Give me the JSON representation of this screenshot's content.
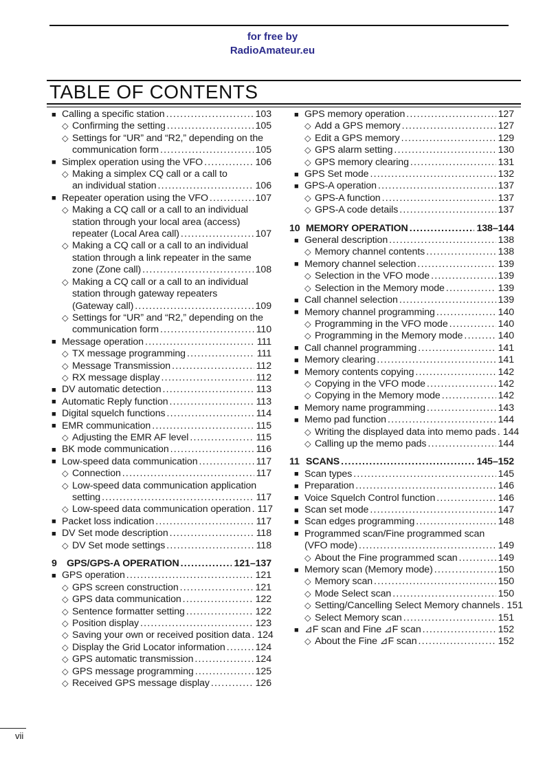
{
  "header": {
    "credit_line1": "for free by",
    "credit_line2": "RadioAmateur.eu",
    "link_color": "#2b2b8c"
  },
  "toc": {
    "title": "TABLE OF CONTENTS",
    "bullet_level1": "■",
    "bullet_level2": "◇",
    "columns": {
      "left": [
        {
          "type": "l1",
          "lines": [
            "Calling a specific station"
          ],
          "page": "103"
        },
        {
          "type": "l2",
          "lines": [
            "Confirming the setting"
          ],
          "page": "105"
        },
        {
          "type": "l2",
          "lines": [
            "Settings for “UR” and “R2,” depending on the",
            "communication form"
          ],
          "page": "105"
        },
        {
          "type": "l1",
          "lines": [
            "Simplex operation using the VFO"
          ],
          "page": "106"
        },
        {
          "type": "l2",
          "lines": [
            "Making a simplex CQ call or a call to",
            "an individual station"
          ],
          "page": "106"
        },
        {
          "type": "l1",
          "lines": [
            "Repeater operation using the VFO"
          ],
          "page": "107"
        },
        {
          "type": "l2",
          "lines": [
            "Making a CQ call or a call to an individual",
            "station through your local area (access)",
            "repeater (Local Area call)"
          ],
          "page": "107"
        },
        {
          "type": "l2",
          "lines": [
            "Making a CQ call or a call to an individual",
            "station through a link repeater in the same",
            "zone (Zone call)"
          ],
          "page": "108"
        },
        {
          "type": "l2",
          "lines": [
            "Making a CQ call or a call to an individual",
            "station through gateway repeaters",
            "(Gateway call)"
          ],
          "page": "109"
        },
        {
          "type": "l2",
          "lines": [
            "Settings for “UR” and “R2,” depending on the",
            "communication form"
          ],
          "page": "110"
        },
        {
          "type": "l1",
          "lines": [
            "Message operation"
          ],
          "page": "111"
        },
        {
          "type": "l2",
          "lines": [
            "TX message programming"
          ],
          "page": "111"
        },
        {
          "type": "l2",
          "lines": [
            "Message Transmission"
          ],
          "page": "112"
        },
        {
          "type": "l2",
          "lines": [
            "RX message display"
          ],
          "page": "112"
        },
        {
          "type": "l1",
          "lines": [
            "DV automatic detection"
          ],
          "page": "113"
        },
        {
          "type": "l1",
          "lines": [
            "Automatic Reply function"
          ],
          "page": "113"
        },
        {
          "type": "l1",
          "lines": [
            "Digital squelch functions"
          ],
          "page": "114"
        },
        {
          "type": "l1",
          "lines": [
            "EMR communication"
          ],
          "page": "115"
        },
        {
          "type": "l2",
          "lines": [
            "Adjusting the EMR AF level"
          ],
          "page": "115"
        },
        {
          "type": "l1",
          "lines": [
            "BK mode communication"
          ],
          "page": "116"
        },
        {
          "type": "l1",
          "lines": [
            "Low-speed data communication"
          ],
          "page": "117"
        },
        {
          "type": "l2",
          "lines": [
            "Connection"
          ],
          "page": "117"
        },
        {
          "type": "l2",
          "lines": [
            "Low-speed data communication application",
            "setting"
          ],
          "page": "117"
        },
        {
          "type": "l2",
          "lines": [
            "Low-speed data communication operation"
          ],
          "page": "117"
        },
        {
          "type": "l1",
          "lines": [
            "Packet loss indication"
          ],
          "page": "117"
        },
        {
          "type": "l1",
          "lines": [
            "DV Set mode description"
          ],
          "page": "118"
        },
        {
          "type": "l2",
          "lines": [
            "DV Set mode settings"
          ],
          "page": "118"
        },
        {
          "type": "chapter",
          "num": "9",
          "lines": [
            "GPS/GPS-A OPERATION"
          ],
          "page": "121–137"
        },
        {
          "type": "l1",
          "lines": [
            "GPS operation"
          ],
          "page": "121"
        },
        {
          "type": "l2",
          "lines": [
            "GPS screen construction"
          ],
          "page": "121"
        },
        {
          "type": "l2",
          "lines": [
            "GPS data communication"
          ],
          "page": "122"
        },
        {
          "type": "l2",
          "lines": [
            "Sentence formatter setting"
          ],
          "page": "122"
        },
        {
          "type": "l2",
          "lines": [
            "Position display"
          ],
          "page": "123"
        },
        {
          "type": "l2",
          "lines": [
            "Saving your own or received position data"
          ],
          "page": "124"
        },
        {
          "type": "l2",
          "lines": [
            "Display the Grid Locator information"
          ],
          "page": "124"
        },
        {
          "type": "l2",
          "lines": [
            "GPS automatic transmission"
          ],
          "page": "124"
        },
        {
          "type": "l2",
          "lines": [
            "GPS message programming"
          ],
          "page": "125"
        },
        {
          "type": "l2",
          "lines": [
            "Received GPS message display"
          ],
          "page": "126"
        }
      ],
      "right": [
        {
          "type": "l1",
          "lines": [
            "GPS memory operation"
          ],
          "page": "127"
        },
        {
          "type": "l2",
          "lines": [
            "Add a GPS memory"
          ],
          "page": "127"
        },
        {
          "type": "l2",
          "lines": [
            "Edit a GPS memory"
          ],
          "page": "129"
        },
        {
          "type": "l2",
          "lines": [
            "GPS alarm setting"
          ],
          "page": "130"
        },
        {
          "type": "l2",
          "lines": [
            "GPS memory clearing"
          ],
          "page": "131"
        },
        {
          "type": "l1",
          "lines": [
            "GPS Set mode"
          ],
          "page": "132"
        },
        {
          "type": "l1",
          "lines": [
            "GPS-A operation"
          ],
          "page": "137"
        },
        {
          "type": "l2",
          "lines": [
            "GPS-A function"
          ],
          "page": "137"
        },
        {
          "type": "l2",
          "lines": [
            "GPS-A code details"
          ],
          "page": "137"
        },
        {
          "type": "chapter",
          "num": "10",
          "lines": [
            "MEMORY OPERATION"
          ],
          "page": "138–144"
        },
        {
          "type": "l1",
          "lines": [
            "General description"
          ],
          "page": "138"
        },
        {
          "type": "l2",
          "lines": [
            "Memory channel contents"
          ],
          "page": "138"
        },
        {
          "type": "l1",
          "lines": [
            "Memory channel selection"
          ],
          "page": "139"
        },
        {
          "type": "l2",
          "lines": [
            "Selection in the VFO mode"
          ],
          "page": "139"
        },
        {
          "type": "l2",
          "lines": [
            "Selection in the Memory mode"
          ],
          "page": "139"
        },
        {
          "type": "l1",
          "lines": [
            "Call channel selection"
          ],
          "page": "139"
        },
        {
          "type": "l1",
          "lines": [
            "Memory channel programming"
          ],
          "page": "140"
        },
        {
          "type": "l2",
          "lines": [
            "Programming in the VFO mode"
          ],
          "page": "140"
        },
        {
          "type": "l2",
          "lines": [
            "Programming in the Memory mode"
          ],
          "page": "140"
        },
        {
          "type": "l1",
          "lines": [
            "Call channel programming"
          ],
          "page": "141"
        },
        {
          "type": "l1",
          "lines": [
            "Memory clearing"
          ],
          "page": "141"
        },
        {
          "type": "l1",
          "lines": [
            "Memory contents copying"
          ],
          "page": "142"
        },
        {
          "type": "l2",
          "lines": [
            "Copying in the VFO mode"
          ],
          "page": "142"
        },
        {
          "type": "l2",
          "lines": [
            "Copying in the Memory mode"
          ],
          "page": "142"
        },
        {
          "type": "l1",
          "lines": [
            "Memory name programming"
          ],
          "page": "143"
        },
        {
          "type": "l1",
          "lines": [
            "Memo pad function"
          ],
          "page": "144"
        },
        {
          "type": "l2",
          "lines": [
            "Writing the displayed data into memo pads"
          ],
          "page": "144"
        },
        {
          "type": "l2",
          "lines": [
            "Calling up the memo pads"
          ],
          "page": "144"
        },
        {
          "type": "chapter",
          "num": "11",
          "lines": [
            "SCANS"
          ],
          "page": "145–152"
        },
        {
          "type": "l1",
          "lines": [
            "Scan types"
          ],
          "page": "145"
        },
        {
          "type": "l1",
          "lines": [
            "Preparation"
          ],
          "page": "146"
        },
        {
          "type": "l1",
          "lines": [
            "Voice Squelch Control function"
          ],
          "page": "146"
        },
        {
          "type": "l1",
          "lines": [
            "Scan set mode"
          ],
          "page": "147"
        },
        {
          "type": "l1",
          "lines": [
            "Scan edges programming"
          ],
          "page": "148"
        },
        {
          "type": "l1",
          "lines": [
            "Programmed scan/Fine programmed scan",
            "(VFO mode)"
          ],
          "page": "149"
        },
        {
          "type": "l2",
          "lines": [
            "About the Fine programmed scan"
          ],
          "page": "149"
        },
        {
          "type": "l1",
          "lines": [
            "Memory scan (Memory mode)"
          ],
          "page": "150"
        },
        {
          "type": "l2",
          "lines": [
            "Memory scan"
          ],
          "page": "150"
        },
        {
          "type": "l2",
          "lines": [
            "Mode Select scan"
          ],
          "page": "150"
        },
        {
          "type": "l2",
          "lines": [
            "Setting/Cancelling Select Memory channels"
          ],
          "page": "151"
        },
        {
          "type": "l2",
          "lines": [
            "Select Memory scan"
          ],
          "page": "151"
        },
        {
          "type": "l1",
          "lines": [
            "⊿F scan and Fine ⊿F scan"
          ],
          "page": "152"
        },
        {
          "type": "l2",
          "lines": [
            "About the Fine ⊿F scan"
          ],
          "page": "152"
        }
      ]
    }
  },
  "footer": {
    "page_number": "vii"
  }
}
